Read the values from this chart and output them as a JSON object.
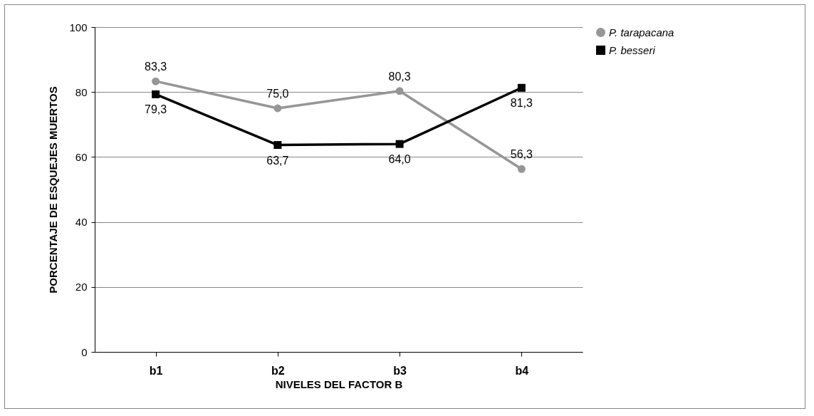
{
  "chart_data": {
    "type": "line",
    "xlabel": "NIVELES DEL FACTOR B",
    "ylabel": "PORCENTAJE DE ESQUEJES MUERTOS",
    "categories": [
      "b1",
      "b2",
      "b3",
      "b4"
    ],
    "series": [
      {
        "name": "P. tarapacana",
        "color": "#969696",
        "marker": "circle",
        "values": [
          83.3,
          75.0,
          80.3,
          56.3
        ],
        "value_labels": [
          "83,3",
          "75,0",
          "80,3",
          "56,3"
        ]
      },
      {
        "name": "P. besseri",
        "color": "#000000",
        "marker": "square",
        "values": [
          79.3,
          63.7,
          64.0,
          81.3
        ],
        "value_labels": [
          "79,3",
          "63,7",
          "64,0",
          "81,3"
        ]
      }
    ],
    "ylim": [
      0,
      100
    ],
    "yticks": [
      0,
      20,
      40,
      60,
      80,
      100
    ],
    "grid": "y",
    "legend": "right"
  }
}
